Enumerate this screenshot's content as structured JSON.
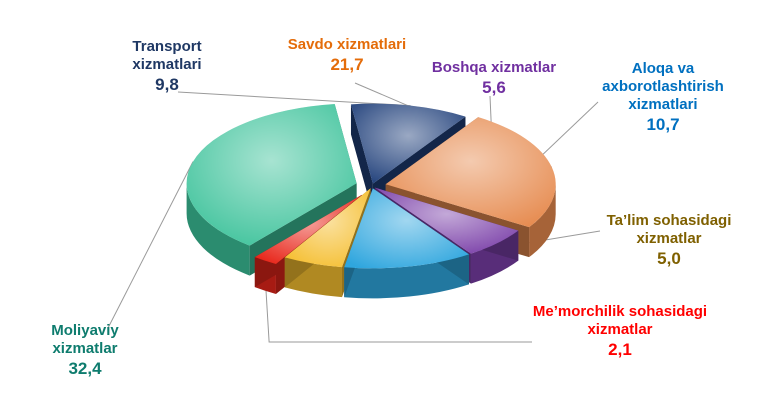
{
  "chart_data": {
    "type": "pie",
    "title": "",
    "slices": [
      {
        "label": "Savdo xizmatlari",
        "value": 21.7,
        "value_label": "21,7",
        "color": "#E68A4E",
        "label_color": "#E46C0A"
      },
      {
        "label": "Boshqa xizmatlar",
        "value": 5.6,
        "value_label": "5,6",
        "color": "#7A3FA8",
        "label_color": "#7030A0"
      },
      {
        "label": "Aloqa va axborotlashtirish xizmatlari",
        "value": 10.7,
        "value_label": "10,7",
        "color": "#2FA6DE",
        "label_color": "#0070C0"
      },
      {
        "label": "Ta’lim sohasidagi xizmatlar",
        "value": 5.0,
        "value_label": "5,0",
        "color": "#F5BE2F",
        "label_color": "#7F6000"
      },
      {
        "label": "Me’morchilik sohasidagi xizmatlar",
        "value": 2.1,
        "value_label": "2,1",
        "color": "#E8261A",
        "label_color": "#FF0000"
      },
      {
        "label": "Moliyaviy xizmatlar",
        "value": 32.4,
        "value_label": "32,4",
        "color": "#3CC29A",
        "label_color": "#0E7C6E"
      },
      {
        "label": "Transport xizmatlari",
        "value": 9.8,
        "value_label": "9,8",
        "color": "#1F3F7A",
        "label_color": "#1F3864"
      }
    ]
  }
}
